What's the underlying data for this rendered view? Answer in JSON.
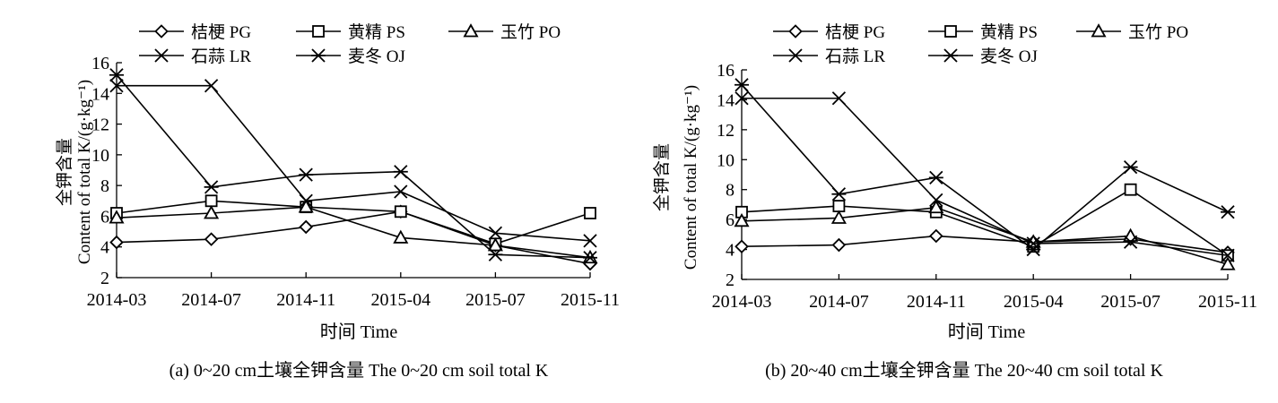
{
  "chart_data": [
    {
      "type": "line",
      "caption": "(a) 0~20 cm土壤全钾含量  The 0~20 cm soil total K",
      "xlabel": "时间  Time",
      "ylabel_cn": "全钾含量",
      "ylabel_en": "Content of total K/(g·kg⁻¹)",
      "ylim": [
        2,
        16
      ],
      "yticks": [
        2,
        4,
        6,
        8,
        10,
        12,
        14,
        16
      ],
      "categories": [
        "2014-03",
        "2014-07",
        "2014-11",
        "2015-04",
        "2015-07",
        "2015-11"
      ],
      "series": [
        {
          "name": "桔梗  PG",
          "marker": "diamond",
          "values": [
            4.3,
            4.5,
            5.3,
            6.3,
            4.1,
            2.9
          ]
        },
        {
          "name": "黄精  PS",
          "marker": "square",
          "values": [
            6.2,
            7.0,
            6.6,
            6.3,
            4.2,
            6.2
          ]
        },
        {
          "name": "玉竹  PO",
          "marker": "triangle",
          "values": [
            5.9,
            6.2,
            6.6,
            4.6,
            4.1,
            3.3
          ]
        },
        {
          "name": "石蒜  LR",
          "marker": "x",
          "values": [
            14.5,
            14.5,
            7.0,
            7.6,
            4.9,
            4.4
          ]
        },
        {
          "name": "麦冬  OJ",
          "marker": "star",
          "values": [
            15.2,
            7.9,
            8.7,
            8.9,
            3.5,
            3.3
          ]
        }
      ]
    },
    {
      "type": "line",
      "caption": "(b) 20~40 cm土壤全钾含量  The 20~40 cm soil total K",
      "xlabel": "时间  Time",
      "ylabel_cn": "全钾含量",
      "ylabel_en": "Content of total K/(g·kg⁻¹)",
      "ylim": [
        2,
        16
      ],
      "yticks": [
        2,
        4,
        6,
        8,
        10,
        12,
        14,
        16
      ],
      "categories": [
        "2014-03",
        "2014-07",
        "2014-11",
        "2015-04",
        "2015-07",
        "2015-11"
      ],
      "series": [
        {
          "name": "桔梗  PG",
          "marker": "diamond",
          "values": [
            4.2,
            4.3,
            4.9,
            4.5,
            4.7,
            3.8
          ]
        },
        {
          "name": "黄精  PS",
          "marker": "square",
          "values": [
            6.5,
            6.9,
            6.5,
            4.2,
            8.0,
            3.6
          ]
        },
        {
          "name": "玉竹  PO",
          "marker": "triangle",
          "values": [
            5.9,
            6.1,
            6.8,
            4.5,
            4.9,
            3.0
          ]
        },
        {
          "name": "石蒜  LR",
          "marker": "x",
          "values": [
            14.1,
            14.1,
            7.3,
            4.4,
            4.5,
            3.6
          ]
        },
        {
          "name": "麦冬  OJ",
          "marker": "star",
          "values": [
            15.0,
            7.7,
            8.8,
            4.0,
            9.5,
            6.5
          ]
        }
      ]
    }
  ]
}
